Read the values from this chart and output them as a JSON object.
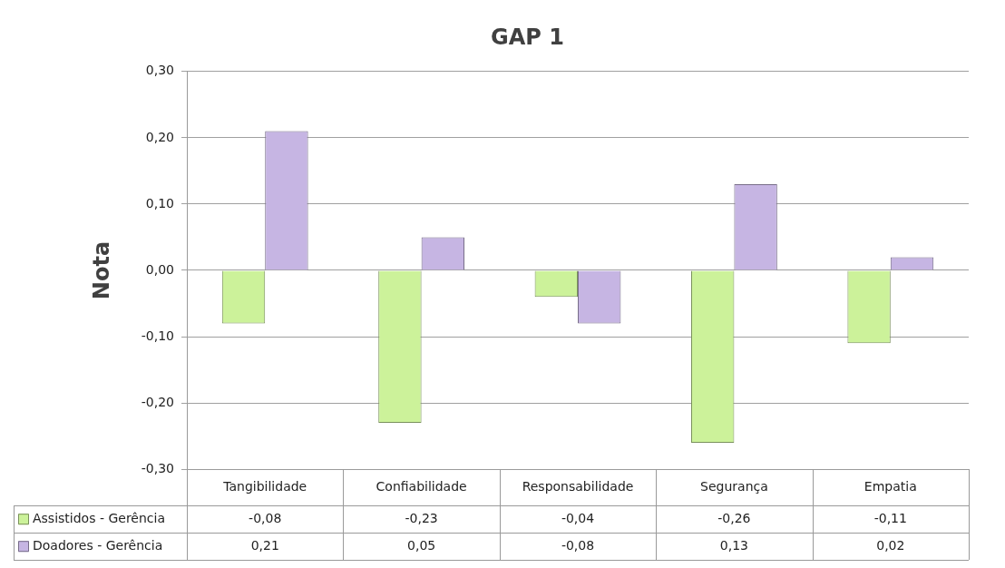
{
  "chart_data": {
    "type": "bar",
    "title": "GAP 1",
    "ylabel": "Nota",
    "categories": [
      "Tangibilidade",
      "Confiabilidade",
      "Responsabilidade",
      "Segurança",
      "Empatia"
    ],
    "series": [
      {
        "name": "Assistidos - Gerência",
        "color": "#ccf29a",
        "values": [
          -0.08,
          -0.23,
          -0.04,
          -0.26,
          -0.11
        ],
        "value_labels": [
          "-0,08",
          "-0,23",
          "-0,04",
          "-0,26",
          "-0,11"
        ]
      },
      {
        "name": "Doadores - Gerência",
        "color": "#c6b5e3",
        "values": [
          0.21,
          0.05,
          -0.08,
          0.13,
          0.02
        ],
        "value_labels": [
          "0,21",
          "0,05",
          "-0,08",
          "0,13",
          "0,02"
        ]
      }
    ],
    "ylim": [
      -0.3,
      0.3
    ],
    "yticks": [
      {
        "value": -0.3,
        "label": "-0,30"
      },
      {
        "value": -0.2,
        "label": "-0,20"
      },
      {
        "value": -0.1,
        "label": "-0,10"
      },
      {
        "value": 0,
        "label": "0,00"
      },
      {
        "value": 0.1,
        "label": "0,10"
      },
      {
        "value": 0.2,
        "label": "0,20"
      },
      {
        "value": 0.3,
        "label": "0,30"
      }
    ],
    "grid": "y",
    "legend": "bottom left"
  }
}
